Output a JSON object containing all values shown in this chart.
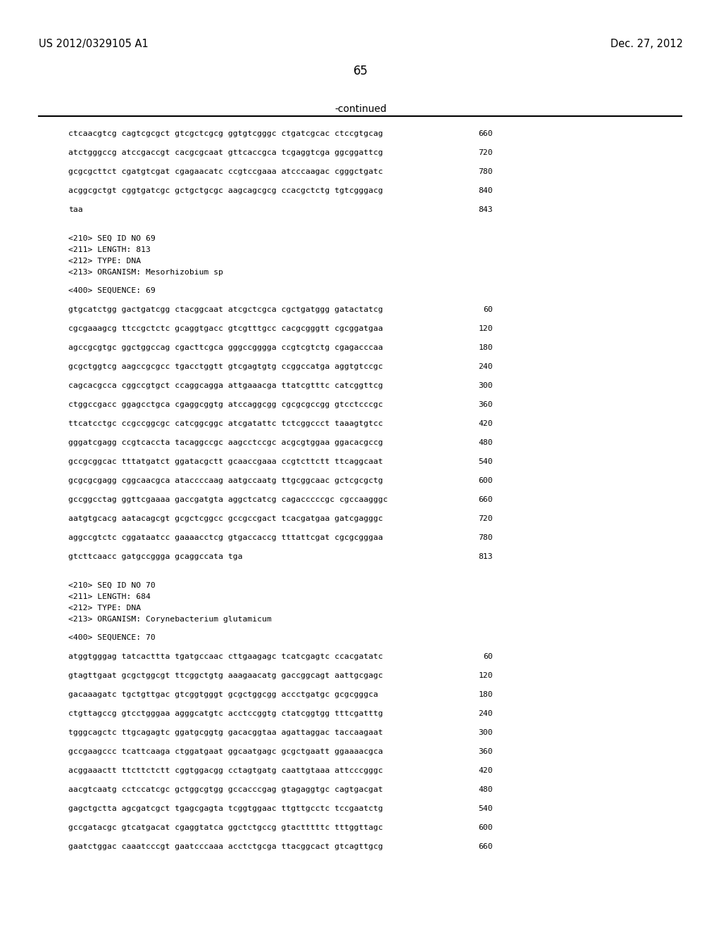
{
  "background_color": "#ffffff",
  "header_left": "US 2012/0329105 A1",
  "header_right": "Dec. 27, 2012",
  "page_number": "65",
  "continued_label": "-continued",
  "lines_cont": [
    {
      "text": "ctcaacgtcg cagtcgcgct gtcgctcgcg ggtgtcgggc ctgatcgcac ctccgtgcag",
      "num": "660"
    },
    {
      "text": "atctgggccg atccgaccgt cacgcgcaat gttcaccgca tcgaggtcga ggcggattcg",
      "num": "720"
    },
    {
      "text": "gcgcgcttct cgatgtcgat cgagaacatc ccgtccgaaa atcccaagac cgggctgatc",
      "num": "780"
    },
    {
      "text": "acggcgctgt cggtgatcgc gctgctgcgc aagcagcgcg ccacgctctg tgtcgggacg",
      "num": "840"
    },
    {
      "text": "taa",
      "num": "843"
    }
  ],
  "seq69_header": [
    "<210> SEQ ID NO 69",
    "<211> LENGTH: 813",
    "<212> TYPE: DNA",
    "<213> ORGANISM: Mesorhizobium sp"
  ],
  "seq69_seq_label": "<400> SEQUENCE: 69",
  "seq69_lines": [
    {
      "text": "gtgcatctgg gactgatcgg ctacggcaat atcgctcgca cgctgatggg gatactatcg",
      "num": "60"
    },
    {
      "text": "cgcgaaagcg ttccgctctc gcaggtgacc gtcgtttgcc cacgcgggtt cgcggatgaa",
      "num": "120"
    },
    {
      "text": "agccgcgtgc ggctggccag cgacttcgca gggccgggga ccgtcgtctg cgagacccaa",
      "num": "180"
    },
    {
      "text": "gcgctggtcg aagccgcgcc tgacctggtt gtcgagtgtg ccggccatga aggtgtccgc",
      "num": "240"
    },
    {
      "text": "cagcacgcca cggccgtgct ccaggcagga attgaaacga ttatcgtttc catcggttcg",
      "num": "300"
    },
    {
      "text": "ctggccgacc ggagcctgca cgaggcggtg atccaggcgg cgcgcgccgg gtcctcccgc",
      "num": "360"
    },
    {
      "text": "ttcatcctgc ccgccggcgc catcggcggc atcgatattc tctcggccct taaagtgtcc",
      "num": "420"
    },
    {
      "text": "gggatcgagg ccgtcaccta tacaggccgc aagcctccgc acgcgtggaa ggacacgccg",
      "num": "480"
    },
    {
      "text": "gccgcggcac tttatgatct ggatacgctt gcaaccgaaa ccgtcttctt ttcaggcaat",
      "num": "540"
    },
    {
      "text": "gcgcgcgagg cggcaacgca ataccccaag aatgccaatg ttgcggcaac gctcgcgctg",
      "num": "600"
    },
    {
      "text": "gccggcctag ggttcgaaaa gaccgatgta aggctcatcg cagacccccgc cgccaagggc",
      "num": "660"
    },
    {
      "text": "aatgtgcacg aatacagcgt gcgctcggcc gccgccgact tcacgatgaa gatcgagggc",
      "num": "720"
    },
    {
      "text": "aggccgtctc cggataatcc gaaaacctcg gtgaccaccg tttattcgat cgcgcgggaa",
      "num": "780"
    },
    {
      "text": "gtcttcaacc gatgccggga gcaggccata tga",
      "num": "813"
    }
  ],
  "seq70_header": [
    "<210> SEQ ID NO 70",
    "<211> LENGTH: 684",
    "<212> TYPE: DNA",
    "<213> ORGANISM: Corynebacterium glutamicum"
  ],
  "seq70_seq_label": "<400> SEQUENCE: 70",
  "seq70_lines": [
    {
      "text": "atggtgggag tatcacttta tgatgccaac cttgaagagc tcatcgagtc ccacgatatc",
      "num": "60"
    },
    {
      "text": "gtagttgaat gcgctggcgt ttcggctgtg aaagaacatg gaccggcagt aattgcgagc",
      "num": "120"
    },
    {
      "text": "gacaaagatc tgctgttgac gtcggtgggt gcgctggcgg accctgatgc gcgcgggca",
      "num": "180"
    },
    {
      "text": "ctgttagccg gtcctgggaa agggcatgtc acctccggtg ctatcggtgg tttcgatttg",
      "num": "240"
    },
    {
      "text": "tgggcagctc ttgcagagtc ggatgcggtg gacacggtaa agattaggac taccaagaat",
      "num": "300"
    },
    {
      "text": "gccgaagccc tcattcaaga ctggatgaat ggcaatgagc gcgctgaatt ggaaaacgca",
      "num": "360"
    },
    {
      "text": "acggaaactt ttcttctctt cggtggacgg cctagtgatg caattgtaaa attcccgggc",
      "num": "420"
    },
    {
      "text": "aacgtcaatg cctccatcgc gctggcgtgg gccacccgag gtagaggtgc cagtgacgat",
      "num": "480"
    },
    {
      "text": "gagctgctta agcgatcgct tgagcgagta tcggtggaac ttgttgcctc tccgaatctg",
      "num": "540"
    },
    {
      "text": "gccgatacgc gtcatgacat cgaggtatca ggctctgccg gtactttttc tttggttagc",
      "num": "600"
    },
    {
      "text": "gaatctggac caaatcccgt gaatcccaaa acctctgcga ttacggcact gtcagttgcg",
      "num": "660"
    }
  ]
}
